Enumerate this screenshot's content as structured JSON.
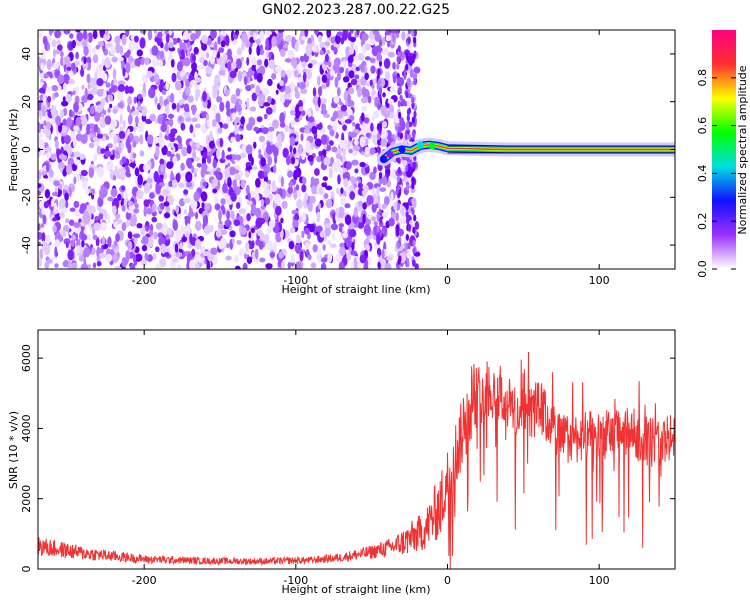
{
  "title": "GN02.2023.287.00.22.G25",
  "chart_data": [
    {
      "type": "heatmap",
      "xlabel": "Height of straight line (km)",
      "ylabel": "Frequency (Hz)",
      "xlim": [
        -270,
        150
      ],
      "ylim": [
        -50,
        50
      ],
      "xticks": [
        -200,
        -100,
        0,
        100
      ],
      "yticks": [
        -40,
        -20,
        0,
        20,
        40
      ],
      "grid": false,
      "noise_region_km": [
        -270,
        -20
      ],
      "signal_track": {
        "freq_hz": 0,
        "start_km": -40,
        "end_km": 150,
        "points": [
          {
            "x": -42,
            "y": -4
          },
          {
            "x": -36,
            "y": -1
          },
          {
            "x": -30,
            "y": 0
          },
          {
            "x": -24,
            "y": -0.5
          },
          {
            "x": -18,
            "y": 1.5
          },
          {
            "x": -12,
            "y": 2
          },
          {
            "x": -6,
            "y": 1.5
          },
          {
            "x": 0,
            "y": 0.5
          },
          {
            "x": 40,
            "y": 0
          },
          {
            "x": 150,
            "y": 0
          }
        ]
      },
      "colorbar": {
        "label": "Normalized spectral amplitude",
        "range": [
          0,
          1
        ],
        "ticks": [
          0.0,
          0.2,
          0.4,
          0.6,
          0.8
        ],
        "colors": [
          "#ffffff",
          "#9b30ff",
          "#1010ff",
          "#00e0e0",
          "#00ff00",
          "#ffff00",
          "#ff3030",
          "#ff0080"
        ]
      }
    },
    {
      "type": "line",
      "xlabel": "Height of straight line (km)",
      "ylabel": "SNR (10 * v/v)",
      "xlim": [
        -270,
        150
      ],
      "ylim": [
        0,
        6800
      ],
      "xticks": [
        -200,
        -100,
        0,
        100
      ],
      "yticks": [
        0,
        2000,
        4000,
        6000
      ],
      "grid": false,
      "color": "#f03232",
      "envelope": [
        {
          "x": -270,
          "mean": 650,
          "spread": 350
        },
        {
          "x": -240,
          "mean": 450,
          "spread": 250
        },
        {
          "x": -200,
          "mean": 280,
          "spread": 150
        },
        {
          "x": -160,
          "mean": 230,
          "spread": 120
        },
        {
          "x": -120,
          "mean": 220,
          "spread": 120
        },
        {
          "x": -90,
          "mean": 250,
          "spread": 130
        },
        {
          "x": -70,
          "mean": 330,
          "spread": 160
        },
        {
          "x": -50,
          "mean": 480,
          "spread": 250
        },
        {
          "x": -35,
          "mean": 650,
          "spread": 350
        },
        {
          "x": -25,
          "mean": 850,
          "spread": 600
        },
        {
          "x": -15,
          "mean": 1100,
          "spread": 700
        },
        {
          "x": -5,
          "mean": 1800,
          "spread": 1200
        },
        {
          "x": 5,
          "mean": 3200,
          "spread": 1300
        },
        {
          "x": 15,
          "mean": 4600,
          "spread": 1200
        },
        {
          "x": 25,
          "mean": 5200,
          "spread": 1100
        },
        {
          "x": 35,
          "mean": 4900,
          "spread": 1000
        },
        {
          "x": 50,
          "mean": 4300,
          "spread": 1000
        },
        {
          "x": 60,
          "mean": 4600,
          "spread": 1000
        },
        {
          "x": 75,
          "mean": 3700,
          "spread": 900
        },
        {
          "x": 100,
          "mean": 3800,
          "spread": 900
        },
        {
          "x": 120,
          "mean": 3900,
          "spread": 900
        },
        {
          "x": 135,
          "mean": 3600,
          "spread": 900
        },
        {
          "x": 150,
          "mean": 3700,
          "spread": 900
        }
      ]
    }
  ]
}
